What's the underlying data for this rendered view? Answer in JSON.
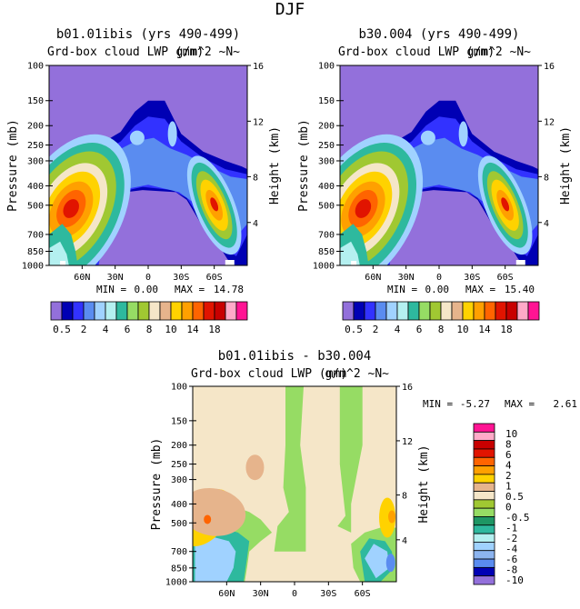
{
  "page": {
    "season_title": "DJF"
  },
  "colors": {
    "cloud_lwp": [
      "#9370db",
      "#0000b4",
      "#3232ff",
      "#5a8cf0",
      "#a0d2ff",
      "#b4f0f0",
      "#2eb99e",
      "#96dc64",
      "#a0c832",
      "#f5e6c8",
      "#e6b48c",
      "#ffd200",
      "#ffa000",
      "#ff6400",
      "#e11400",
      "#c80000",
      "#ffaac8",
      "#ff1493"
    ],
    "diff": [
      "#9370db",
      "#0000b4",
      "#5a8cf0",
      "#8cb4f0",
      "#a0d2ff",
      "#b4f0f0",
      "#2eb99e",
      "#1e9664",
      "#96dc64",
      "#a0c832",
      "#f5e6c8",
      "#e6b48c",
      "#ffd200",
      "#ffa000",
      "#ff6400",
      "#e11400",
      "#c80000",
      "#ffaac8",
      "#ff1493"
    ]
  },
  "panels": [
    {
      "id": "top-left",
      "title": "b01.01ibis (yrs 490-499)",
      "subtitle_left": "Grd-box cloud LWP (mm)",
      "subtitle_right": "g/m^2 ~N~",
      "ylabel": "Pressure (mb)",
      "ylabel_right": "Height (km)",
      "min_text": "MIN =",
      "min_value": "0.00",
      "max_text": "MAX =",
      "max_value": "14.78"
    },
    {
      "id": "top-right",
      "title": "b30.004 (yrs 490-499)",
      "subtitle_left": "Grd-box cloud LWP (mm)",
      "subtitle_right": "g/m^2 ~N~",
      "ylabel": "Pressure (mb)",
      "ylabel_right": "Height (km)",
      "min_text": "MIN =",
      "min_value": "0.00",
      "max_text": "MAX =",
      "max_value": "15.40"
    },
    {
      "id": "bottom",
      "title": "b01.01ibis - b30.004",
      "subtitle_left": "Grd-box cloud LWP (mm)",
      "subtitle_right": "g/m^2 ~N~",
      "ylabel": "Pressure (mb)",
      "ylabel_right": "Height (km)",
      "min_text": "MIN =",
      "min_value": "-5.27",
      "max_text": "MAX =",
      "max_value": "2.61"
    }
  ],
  "chart_data": [
    {
      "type": "heatmap",
      "title": "b01.01ibis (yrs 490-499)",
      "subtitle": "Grd-box cloud LWP (mm)",
      "ylabel": "Pressure (mb)",
      "ylabel_right": "Height (km)",
      "x_ticks": [
        "60N",
        "30N",
        "0",
        "30S",
        "60S"
      ],
      "x_tick_values": [
        60,
        30,
        0,
        -30,
        -60
      ],
      "xlim": [
        90,
        -90
      ],
      "y_ticks": [
        100,
        150,
        200,
        250,
        300,
        400,
        500,
        700,
        850,
        1000
      ],
      "ylim": [
        100,
        1000
      ],
      "y_right_ticks": [
        16,
        12,
        8,
        4
      ],
      "colorbar_levels": [
        0.5,
        1,
        2,
        3,
        4,
        5,
        6,
        7,
        8,
        9,
        10,
        12,
        14,
        16,
        18
      ],
      "colorbar_labels": [
        "0.5",
        "2",
        "4",
        "6",
        "8",
        "10",
        "14",
        "18"
      ],
      "min": 0.0,
      "max": 14.78
    },
    {
      "type": "heatmap",
      "title": "b30.004 (yrs 490-499)",
      "subtitle": "Grd-box cloud LWP (mm)",
      "ylabel": "Pressure (mb)",
      "ylabel_right": "Height (km)",
      "x_ticks": [
        "60N",
        "30N",
        "0",
        "30S",
        "60S"
      ],
      "x_tick_values": [
        60,
        30,
        0,
        -30,
        -60
      ],
      "xlim": [
        90,
        -90
      ],
      "y_ticks": [
        100,
        150,
        200,
        250,
        300,
        400,
        500,
        700,
        850,
        1000
      ],
      "ylim": [
        100,
        1000
      ],
      "y_right_ticks": [
        16,
        12,
        8,
        4
      ],
      "colorbar_levels": [
        0.5,
        1,
        2,
        3,
        4,
        5,
        6,
        7,
        8,
        9,
        10,
        12,
        14,
        16,
        18
      ],
      "colorbar_labels": [
        "0.5",
        "2",
        "4",
        "6",
        "8",
        "10",
        "14",
        "18"
      ],
      "min": 0.0,
      "max": 15.4
    },
    {
      "type": "heatmap",
      "title": "b01.01ibis - b30.004",
      "subtitle": "Grd-box cloud LWP (mm)",
      "ylabel": "Pressure (mb)",
      "ylabel_right": "Height (km)",
      "x_ticks": [
        "60N",
        "30N",
        "0",
        "30S",
        "60S"
      ],
      "x_tick_values": [
        60,
        30,
        0,
        -30,
        -60
      ],
      "xlim": [
        90,
        -90
      ],
      "y_ticks": [
        100,
        150,
        200,
        250,
        300,
        400,
        500,
        700,
        850,
        1000
      ],
      "ylim": [
        100,
        1000
      ],
      "y_right_ticks": [
        16,
        12,
        8,
        4
      ],
      "colorbar_levels": [
        -10,
        -8,
        -6,
        -4,
        -2,
        -1,
        -0.5,
        0,
        0.5,
        1,
        2,
        4,
        6,
        8,
        10
      ],
      "colorbar_labels": [
        "10",
        "8",
        "6",
        "4",
        "2",
        "1",
        "0.5",
        "0",
        "-0.5",
        "-1",
        "-2",
        "-4",
        "-6",
        "-8",
        "-10"
      ],
      "min": -5.27,
      "max": 2.61
    }
  ]
}
